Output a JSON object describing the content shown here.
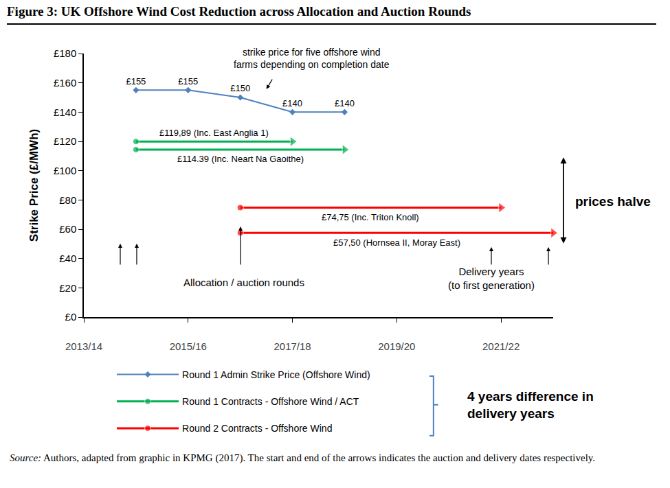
{
  "title": "Figure 3: UK Offshore Wind Cost Reduction across Allocation and Auction Rounds",
  "source_label": "Source:",
  "source": "Authors, adapted from graphic in KPMG (2017). The start and end of the arrows indicates the auction and delivery dates respectively.",
  "chart_data": {
    "type": "line",
    "y_label": "Strike Price (£/MWh)",
    "xlim": [
      2013,
      2022
    ],
    "xticks": [
      {
        "value": 2013,
        "label": "2013/14"
      },
      {
        "value": 2015,
        "label": "2015/16"
      },
      {
        "value": 2017,
        "label": "2017/18"
      },
      {
        "value": 2019,
        "label": "2019/20"
      },
      {
        "value": 2021,
        "label": "2021/22"
      }
    ],
    "ylim": [
      0,
      180
    ],
    "yticks": [
      {
        "value": 0,
        "label": "£0"
      },
      {
        "value": 20,
        "label": "£20"
      },
      {
        "value": 40,
        "label": "£40"
      },
      {
        "value": 60,
        "label": "£60"
      },
      {
        "value": 80,
        "label": "£80"
      },
      {
        "value": 100,
        "label": "£100"
      },
      {
        "value": 120,
        "label": "£120"
      },
      {
        "value": 140,
        "label": "£140"
      },
      {
        "value": 160,
        "label": "£160"
      },
      {
        "value": 180,
        "label": "£180"
      }
    ],
    "grid": false,
    "legend": "bottom left",
    "data_labels": true,
    "series": [
      {
        "name": "Round 1 Admin Strike Price (Offshore Wind)",
        "color": "#4f81bd",
        "marker": "diamond",
        "x": [
          2014,
          2015,
          2016,
          2017,
          2018
        ],
        "values": [
          155,
          155,
          150,
          140,
          140
        ],
        "value_labels": [
          "£155",
          "£155",
          "£150",
          "£140",
          "£140"
        ]
      },
      {
        "name": "Round 1 Contracts - Offshore Wind / ACT",
        "color": "#00b050",
        "marker": "circle",
        "line_style": "arrow",
        "segments": [
          {
            "x": [
              2014,
              2017
            ],
            "values": [
              119.89,
              119.89
            ],
            "label": "£119,89 (Inc. East Anglia 1)"
          },
          {
            "x": [
              2014,
              2018
            ],
            "values": [
              114.39,
              114.39
            ],
            "label": "£114.39 (Inc. Neart Na Gaoithe)"
          }
        ]
      },
      {
        "name": "Round 2 Contracts - Offshore Wind",
        "color": "#ff0000",
        "marker": "circle",
        "line_style": "arrow",
        "segments": [
          {
            "x": [
              2016,
              2021
            ],
            "values": [
              74.75,
              74.75
            ],
            "label": "£74,75 (Inc. Triton Knoll)"
          },
          {
            "x": [
              2016,
              2022
            ],
            "values": [
              57.5,
              57.5
            ],
            "label": "£57,50 (Hornsea II, Moray East)"
          }
        ]
      }
    ],
    "annotations": [
      "strike price for five offshore wind\nfarms depending on completion date",
      "Allocation / auction rounds",
      "Delivery years\n(to first generation)",
      "prices halve",
      "4 years difference in\ndelivery years"
    ]
  }
}
